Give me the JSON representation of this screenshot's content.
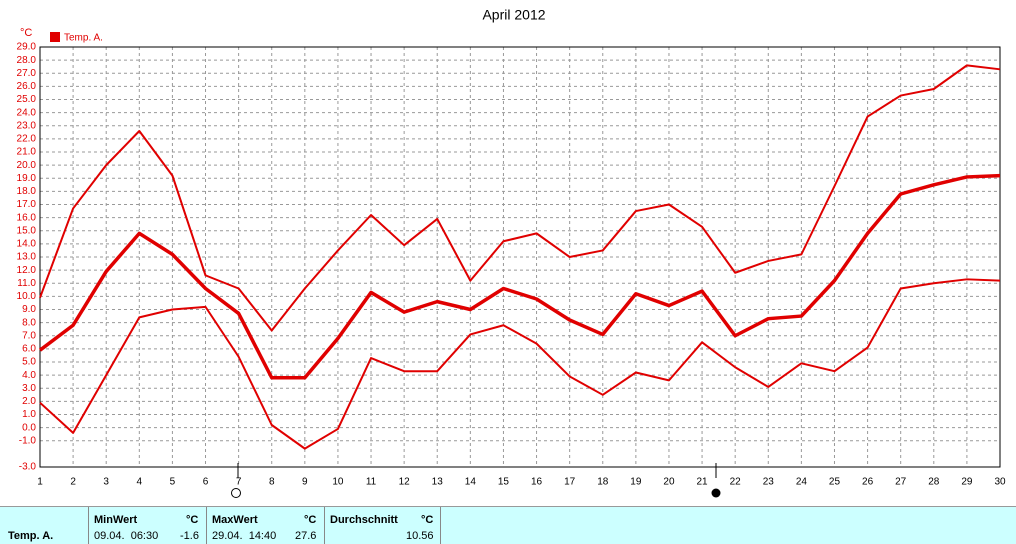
{
  "chart_data": {
    "type": "line",
    "title": "April 2012",
    "y_label": "°C",
    "x": [
      1,
      2,
      3,
      4,
      5,
      6,
      7,
      8,
      9,
      10,
      11,
      12,
      13,
      14,
      15,
      16,
      17,
      18,
      19,
      20,
      21,
      22,
      23,
      24,
      25,
      26,
      27,
      28,
      29,
      30
    ],
    "xlim": [
      1,
      30
    ],
    "series": [
      {
        "name": "Temp. A.",
        "color": "#e00000",
        "values": [
          5.9,
          7.8,
          11.9,
          14.8,
          13.2,
          10.6,
          8.7,
          3.8,
          3.8,
          6.8,
          10.3,
          8.8,
          9.6,
          9.0,
          10.6,
          9.8,
          8.2,
          7.1,
          10.2,
          9.3,
          10.4,
          7.0,
          8.3,
          8.5,
          11.2,
          14.8,
          17.8,
          18.5,
          19.1,
          19.2
        ],
        "high": [
          9.9,
          16.7,
          20.0,
          22.6,
          19.2,
          11.6,
          10.6,
          7.4,
          10.6,
          13.5,
          16.2,
          13.9,
          15.9,
          11.2,
          14.2,
          14.8,
          13.0,
          13.5,
          16.5,
          17.0,
          15.3,
          11.8,
          12.7,
          13.2,
          18.4,
          23.7,
          25.3,
          25.8,
          27.6,
          27.3
        ],
        "low": [
          1.9,
          -0.4,
          4.0,
          8.4,
          9.0,
          9.2,
          5.4,
          0.2,
          -1.6,
          -0.1,
          5.3,
          4.3,
          4.3,
          7.1,
          7.8,
          6.4,
          3.9,
          2.5,
          4.2,
          3.6,
          6.5,
          4.6,
          3.1,
          4.9,
          4.3,
          6.1,
          10.6,
          11.0,
          11.3,
          11.2
        ]
      }
    ],
    "ylim": [
      -3,
      29
    ],
    "yticks": [
      {
        "value": -3,
        "label": "-3.0"
      },
      {
        "value": -1,
        "label": "-1.0"
      },
      {
        "value": 0,
        "label": "0.0"
      },
      {
        "value": 1,
        "label": "1.0"
      },
      {
        "value": 2,
        "label": "2.0"
      },
      {
        "value": 3,
        "label": "3.0"
      },
      {
        "value": 4,
        "label": "4.0"
      },
      {
        "value": 5,
        "label": "5.0"
      },
      {
        "value": 6,
        "label": "6.0"
      },
      {
        "value": 7,
        "label": "7.0"
      },
      {
        "value": 8,
        "label": "8.0"
      },
      {
        "value": 9,
        "label": "9.0"
      },
      {
        "value": 10,
        "label": "10.0"
      },
      {
        "value": 11,
        "label": "11.0"
      },
      {
        "value": 12,
        "label": "12.0"
      },
      {
        "value": 13,
        "label": "13.0"
      },
      {
        "value": 14,
        "label": "14.0"
      },
      {
        "value": 15,
        "label": "15.0"
      },
      {
        "value": 16,
        "label": "16.0"
      },
      {
        "value": 17,
        "label": "17.0"
      },
      {
        "value": 18,
        "label": "18.0"
      },
      {
        "value": 19,
        "label": "19.0"
      },
      {
        "value": 20,
        "label": "20.0"
      },
      {
        "value": 21,
        "label": "21.0"
      },
      {
        "value": 22,
        "label": "22.0"
      },
      {
        "value": 23,
        "label": "23.0"
      },
      {
        "value": 24,
        "label": "24.0"
      },
      {
        "value": 25,
        "label": "25.0"
      },
      {
        "value": 26,
        "label": "26.0"
      },
      {
        "value": 27,
        "label": "27.0"
      },
      {
        "value": 28,
        "label": "28.0"
      },
      {
        "value": 29,
        "label": "29.0"
      }
    ],
    "grid": true
  },
  "summary": {
    "row_label": "Temp. A.",
    "unit": "°C",
    "min_header": "MinWert",
    "min_time": "09.04.  06:30",
    "min_value": "-1.6",
    "max_header": "MaxWert",
    "max_time": "29.04.  14:40",
    "max_value": "27.6",
    "avg_header": "Durchschnitt",
    "avg_value": "10.56"
  }
}
